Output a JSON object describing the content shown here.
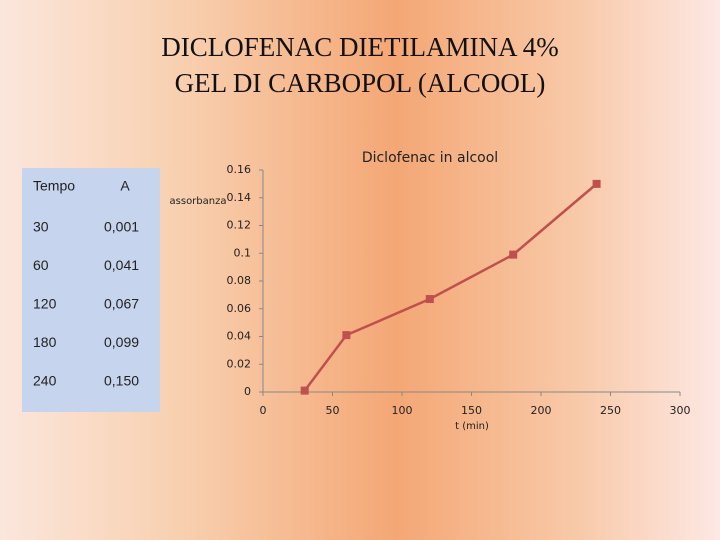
{
  "slide": {
    "title_lines": [
      "DICLOFENAC DIETILAMINA 4%",
      "GEL DI CARBOPOL  (ALCOOL)"
    ]
  },
  "table": {
    "header": [
      "Tempo",
      "A"
    ],
    "rows": [
      [
        "30",
        "0,001"
      ],
      [
        "60",
        "0,041"
      ],
      [
        "120",
        "0,067"
      ],
      [
        "180",
        "0,099"
      ],
      [
        "240",
        "0,150"
      ]
    ]
  },
  "chart_data": {
    "type": "line",
    "title": "Diclofenac in alcool",
    "x_label": "t (min)",
    "y_label": "assorbanza",
    "x": [
      30,
      60,
      120,
      180,
      240
    ],
    "series": [
      {
        "name": "A",
        "color": "#c0504d",
        "values": [
          0.001,
          0.041,
          0.067,
          0.099,
          0.15
        ]
      }
    ],
    "xlim": [
      0,
      300
    ],
    "xticks": [
      0,
      50,
      100,
      150,
      200,
      250,
      300
    ],
    "ylim": [
      0,
      0.16
    ],
    "yticks": [
      0,
      0.02,
      0.04,
      0.06,
      0.08,
      0.1,
      0.12,
      0.14,
      0.16
    ],
    "grid": false,
    "legend": false
  }
}
